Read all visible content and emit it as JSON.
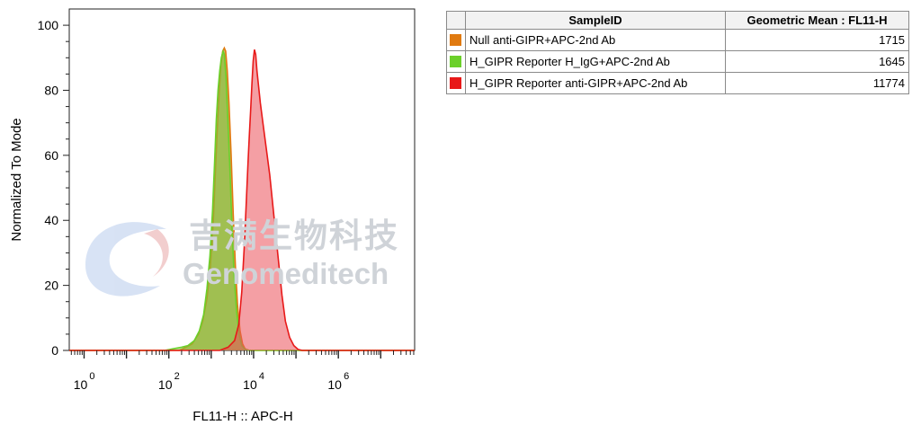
{
  "watermark": {
    "chinese": "吉满生物科技",
    "english": "Genomeditech"
  },
  "legend_table": {
    "headers": [
      "",
      "SampleID",
      "Geometric Mean : FL11-H"
    ],
    "rows": [
      {
        "color": "#e07a10",
        "sample": "Null anti-GIPR+APC-2nd Ab",
        "value": "1715"
      },
      {
        "color": "#6bd02a",
        "sample": "H_GIPR Reporter H_IgG+APC-2nd Ab",
        "value": "1645"
      },
      {
        "color": "#e81919",
        "sample": "H_GIPR Reporter anti-GIPR+APC-2nd Ab",
        "value": "11774"
      }
    ]
  },
  "chart_data": {
    "type": "area",
    "title": "",
    "xlabel": "FL11-H :: APC-H",
    "ylabel": "Normalized To Mode",
    "x_scale": "log",
    "xlim_log10": [
      -0.35,
      7.8
    ],
    "ylim": [
      0,
      105
    ],
    "y_ticks": [
      0,
      20,
      40,
      60,
      80,
      100
    ],
    "x_ticks": [
      {
        "base": "10",
        "exp": "0",
        "log10": 0
      },
      {
        "base": "10",
        "exp": "2",
        "log10": 2
      },
      {
        "base": "10",
        "exp": "4",
        "log10": 4
      },
      {
        "base": "10",
        "exp": "6",
        "log10": 6
      }
    ],
    "series": [
      {
        "name": "Null anti-GIPR+APC-2nd Ab",
        "color": "#e07a10",
        "fill": "rgba(190,150,50,0.72)",
        "points": [
          [
            -0.35,
            0
          ],
          [
            2.25,
            0
          ],
          [
            2.4,
            1
          ],
          [
            2.55,
            2
          ],
          [
            2.7,
            5
          ],
          [
            2.8,
            9
          ],
          [
            2.9,
            16
          ],
          [
            2.98,
            26
          ],
          [
            3.05,
            40
          ],
          [
            3.1,
            56
          ],
          [
            3.15,
            70
          ],
          [
            3.19,
            80
          ],
          [
            3.23,
            88
          ],
          [
            3.27,
            92
          ],
          [
            3.31,
            93
          ],
          [
            3.34,
            92
          ],
          [
            3.38,
            86
          ],
          [
            3.42,
            76
          ],
          [
            3.47,
            60
          ],
          [
            3.52,
            42
          ],
          [
            3.57,
            26
          ],
          [
            3.62,
            14
          ],
          [
            3.68,
            6
          ],
          [
            3.74,
            2
          ],
          [
            3.8,
            0.5
          ],
          [
            3.9,
            0
          ],
          [
            7.8,
            0
          ]
        ]
      },
      {
        "name": "H_GIPR Reporter H_IgG+APC-2nd Ab",
        "color": "#6bd02a",
        "fill": "rgba(120,200,60,0.55)",
        "points": [
          [
            -0.35,
            0
          ],
          [
            1.9,
            0
          ],
          [
            2.1,
            0.5
          ],
          [
            2.3,
            1
          ],
          [
            2.45,
            1.5
          ],
          [
            2.6,
            3
          ],
          [
            2.72,
            6
          ],
          [
            2.82,
            11
          ],
          [
            2.9,
            19
          ],
          [
            2.97,
            29
          ],
          [
            3.03,
            43
          ],
          [
            3.08,
            58
          ],
          [
            3.12,
            71
          ],
          [
            3.16,
            80
          ],
          [
            3.2,
            86
          ],
          [
            3.24,
            90
          ],
          [
            3.28,
            92
          ],
          [
            3.31,
            91
          ],
          [
            3.35,
            84
          ],
          [
            3.39,
            72
          ],
          [
            3.44,
            56
          ],
          [
            3.49,
            38
          ],
          [
            3.54,
            23
          ],
          [
            3.6,
            12
          ],
          [
            3.66,
            5
          ],
          [
            3.72,
            1.5
          ],
          [
            3.8,
            0.3
          ],
          [
            3.9,
            0
          ],
          [
            7.8,
            0
          ]
        ]
      },
      {
        "name": "H_GIPR Reporter anti-GIPR+APC-2nd Ab",
        "color": "#e81919",
        "fill": "rgba(235,80,90,0.55)",
        "points": [
          [
            -0.35,
            0
          ],
          [
            3.2,
            0
          ],
          [
            3.4,
            1
          ],
          [
            3.55,
            3
          ],
          [
            3.65,
            8
          ],
          [
            3.72,
            18
          ],
          [
            3.78,
            32
          ],
          [
            3.83,
            46
          ],
          [
            3.87,
            58
          ],
          [
            3.9,
            66
          ],
          [
            3.93,
            74
          ],
          [
            3.96,
            82
          ],
          [
            3.99,
            89
          ],
          [
            4.02,
            92.5
          ],
          [
            4.05,
            91
          ],
          [
            4.08,
            86
          ],
          [
            4.12,
            81
          ],
          [
            4.16,
            76
          ],
          [
            4.22,
            70
          ],
          [
            4.3,
            62
          ],
          [
            4.38,
            54
          ],
          [
            4.45,
            45
          ],
          [
            4.52,
            36
          ],
          [
            4.6,
            26
          ],
          [
            4.67,
            17
          ],
          [
            4.75,
            9
          ],
          [
            4.85,
            4
          ],
          [
            4.95,
            1.5
          ],
          [
            5.05,
            0.3
          ],
          [
            5.15,
            0
          ],
          [
            7.8,
            0
          ]
        ]
      }
    ]
  }
}
